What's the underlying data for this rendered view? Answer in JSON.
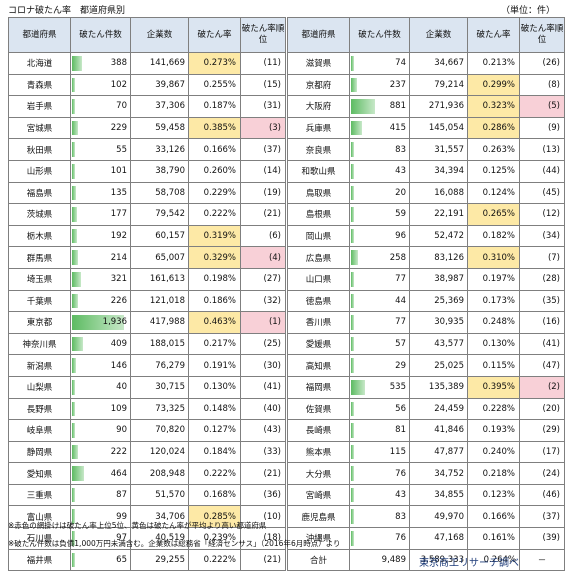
{
  "title": "コロナ破たん率　都道府県別",
  "unit": "（単位：件）",
  "headers": {
    "pref": "都道府県",
    "count": "破たん件数",
    "companies": "企業数",
    "rate": "破たん率",
    "rank": "破たん率順位"
  },
  "max_count": 1936,
  "colors": {
    "rate_highlight": "#fde9a6",
    "rank_highlight": "#f8d0d7",
    "header_bg": "#dbe5f1"
  },
  "left": [
    {
      "pref": "北海道",
      "count": "388",
      "n": 388,
      "companies": "141,669",
      "rate": "0.273%",
      "rank": "(11)",
      "rate_hl": true,
      "rank_hl": false
    },
    {
      "pref": "青森県",
      "count": "102",
      "n": 102,
      "companies": "39,867",
      "rate": "0.255%",
      "rank": "(15)",
      "rate_hl": false,
      "rank_hl": false
    },
    {
      "pref": "岩手県",
      "count": "70",
      "n": 70,
      "companies": "37,306",
      "rate": "0.187%",
      "rank": "(31)",
      "rate_hl": false,
      "rank_hl": false
    },
    {
      "pref": "宮城県",
      "count": "229",
      "n": 229,
      "companies": "59,458",
      "rate": "0.385%",
      "rank": "(3)",
      "rate_hl": true,
      "rank_hl": true
    },
    {
      "pref": "秋田県",
      "count": "55",
      "n": 55,
      "companies": "33,126",
      "rate": "0.166%",
      "rank": "(37)",
      "rate_hl": false,
      "rank_hl": false
    },
    {
      "pref": "山形県",
      "count": "101",
      "n": 101,
      "companies": "38,790",
      "rate": "0.260%",
      "rank": "(14)",
      "rate_hl": false,
      "rank_hl": false
    },
    {
      "pref": "福島県",
      "count": "135",
      "n": 135,
      "companies": "58,708",
      "rate": "0.229%",
      "rank": "(19)",
      "rate_hl": false,
      "rank_hl": false
    },
    {
      "pref": "茨城県",
      "count": "177",
      "n": 177,
      "companies": "79,542",
      "rate": "0.222%",
      "rank": "(21)",
      "rate_hl": false,
      "rank_hl": false
    },
    {
      "pref": "栃木県",
      "count": "192",
      "n": 192,
      "companies": "60,157",
      "rate": "0.319%",
      "rank": "(6)",
      "rate_hl": true,
      "rank_hl": false
    },
    {
      "pref": "群馬県",
      "count": "214",
      "n": 214,
      "companies": "65,007",
      "rate": "0.329%",
      "rank": "(4)",
      "rate_hl": true,
      "rank_hl": true
    },
    {
      "pref": "埼玉県",
      "count": "321",
      "n": 321,
      "companies": "161,613",
      "rate": "0.198%",
      "rank": "(27)",
      "rate_hl": false,
      "rank_hl": false
    },
    {
      "pref": "千葉県",
      "count": "226",
      "n": 226,
      "companies": "121,018",
      "rate": "0.186%",
      "rank": "(32)",
      "rate_hl": false,
      "rank_hl": false
    },
    {
      "pref": "東京都",
      "count": "1,936",
      "n": 1936,
      "companies": "417,988",
      "rate": "0.463%",
      "rank": "(1)",
      "rate_hl": true,
      "rank_hl": true
    },
    {
      "pref": "神奈川県",
      "count": "409",
      "n": 409,
      "companies": "188,015",
      "rate": "0.217%",
      "rank": "(25)",
      "rate_hl": false,
      "rank_hl": false
    },
    {
      "pref": "新潟県",
      "count": "146",
      "n": 146,
      "companies": "76,279",
      "rate": "0.191%",
      "rank": "(30)",
      "rate_hl": false,
      "rank_hl": false
    },
    {
      "pref": "山梨県",
      "count": "40",
      "n": 40,
      "companies": "30,715",
      "rate": "0.130%",
      "rank": "(41)",
      "rate_hl": false,
      "rank_hl": false
    },
    {
      "pref": "長野県",
      "count": "109",
      "n": 109,
      "companies": "73,325",
      "rate": "0.148%",
      "rank": "(40)",
      "rate_hl": false,
      "rank_hl": false
    },
    {
      "pref": "岐阜県",
      "count": "90",
      "n": 90,
      "companies": "70,820",
      "rate": "0.127%",
      "rank": "(43)",
      "rate_hl": false,
      "rank_hl": false
    },
    {
      "pref": "静岡県",
      "count": "222",
      "n": 222,
      "companies": "120,024",
      "rate": "0.184%",
      "rank": "(33)",
      "rate_hl": false,
      "rank_hl": false
    },
    {
      "pref": "愛知県",
      "count": "464",
      "n": 464,
      "companies": "208,948",
      "rate": "0.222%",
      "rank": "(21)",
      "rate_hl": false,
      "rank_hl": false
    },
    {
      "pref": "三重県",
      "count": "87",
      "n": 87,
      "companies": "51,570",
      "rate": "0.168%",
      "rank": "(36)",
      "rate_hl": false,
      "rank_hl": false
    },
    {
      "pref": "富山県",
      "count": "99",
      "n": 99,
      "companies": "34,706",
      "rate": "0.285%",
      "rank": "(10)",
      "rate_hl": true,
      "rank_hl": false
    },
    {
      "pref": "石川県",
      "count": "97",
      "n": 97,
      "companies": "40,519",
      "rate": "0.239%",
      "rank": "(18)",
      "rate_hl": false,
      "rank_hl": false
    },
    {
      "pref": "福井県",
      "count": "65",
      "n": 65,
      "companies": "29,255",
      "rate": "0.222%",
      "rank": "(21)",
      "rate_hl": false,
      "rank_hl": false
    }
  ],
  "right": [
    {
      "pref": "滋賀県",
      "count": "74",
      "n": 74,
      "companies": "34,667",
      "rate": "0.213%",
      "rank": "(26)",
      "rate_hl": false,
      "rank_hl": false
    },
    {
      "pref": "京都府",
      "count": "237",
      "n": 237,
      "companies": "79,214",
      "rate": "0.299%",
      "rank": "(8)",
      "rate_hl": true,
      "rank_hl": false
    },
    {
      "pref": "大阪府",
      "count": "881",
      "n": 881,
      "companies": "271,936",
      "rate": "0.323%",
      "rank": "(5)",
      "rate_hl": true,
      "rank_hl": true
    },
    {
      "pref": "兵庫県",
      "count": "415",
      "n": 415,
      "companies": "145,054",
      "rate": "0.286%",
      "rank": "(9)",
      "rate_hl": true,
      "rank_hl": false
    },
    {
      "pref": "奈良県",
      "count": "83",
      "n": 83,
      "companies": "31,557",
      "rate": "0.263%",
      "rank": "(13)",
      "rate_hl": false,
      "rank_hl": false
    },
    {
      "pref": "和歌山県",
      "count": "43",
      "n": 43,
      "companies": "34,394",
      "rate": "0.125%",
      "rank": "(44)",
      "rate_hl": false,
      "rank_hl": false
    },
    {
      "pref": "鳥取県",
      "count": "20",
      "n": 20,
      "companies": "16,088",
      "rate": "0.124%",
      "rank": "(45)",
      "rate_hl": false,
      "rank_hl": false
    },
    {
      "pref": "島根県",
      "count": "59",
      "n": 59,
      "companies": "22,191",
      "rate": "0.265%",
      "rank": "(12)",
      "rate_hl": true,
      "rank_hl": false
    },
    {
      "pref": "岡山県",
      "count": "96",
      "n": 96,
      "companies": "52,472",
      "rate": "0.182%",
      "rank": "(34)",
      "rate_hl": false,
      "rank_hl": false
    },
    {
      "pref": "広島県",
      "count": "258",
      "n": 258,
      "companies": "83,126",
      "rate": "0.310%",
      "rank": "(7)",
      "rate_hl": true,
      "rank_hl": false
    },
    {
      "pref": "山口県",
      "count": "77",
      "n": 77,
      "companies": "38,987",
      "rate": "0.197%",
      "rank": "(28)",
      "rate_hl": false,
      "rank_hl": false
    },
    {
      "pref": "徳島県",
      "count": "44",
      "n": 44,
      "companies": "25,369",
      "rate": "0.173%",
      "rank": "(35)",
      "rate_hl": false,
      "rank_hl": false
    },
    {
      "pref": "香川県",
      "count": "77",
      "n": 77,
      "companies": "30,935",
      "rate": "0.248%",
      "rank": "(16)",
      "rate_hl": false,
      "rank_hl": false
    },
    {
      "pref": "愛媛県",
      "count": "57",
      "n": 57,
      "companies": "43,577",
      "rate": "0.130%",
      "rank": "(41)",
      "rate_hl": false,
      "rank_hl": false
    },
    {
      "pref": "高知県",
      "count": "29",
      "n": 29,
      "companies": "25,025",
      "rate": "0.115%",
      "rank": "(47)",
      "rate_hl": false,
      "rank_hl": false
    },
    {
      "pref": "福岡県",
      "count": "535",
      "n": 535,
      "companies": "135,389",
      "rate": "0.395%",
      "rank": "(2)",
      "rate_hl": true,
      "rank_hl": true
    },
    {
      "pref": "佐賀県",
      "count": "56",
      "n": 56,
      "companies": "24,459",
      "rate": "0.228%",
      "rank": "(20)",
      "rate_hl": false,
      "rank_hl": false
    },
    {
      "pref": "長崎県",
      "count": "81",
      "n": 81,
      "companies": "41,846",
      "rate": "0.193%",
      "rank": "(29)",
      "rate_hl": false,
      "rank_hl": false
    },
    {
      "pref": "熊本県",
      "count": "115",
      "n": 115,
      "companies": "47,877",
      "rate": "0.240%",
      "rank": "(17)",
      "rate_hl": false,
      "rank_hl": false
    },
    {
      "pref": "大分県",
      "count": "76",
      "n": 76,
      "companies": "34,752",
      "rate": "0.218%",
      "rank": "(24)",
      "rate_hl": false,
      "rank_hl": false
    },
    {
      "pref": "宮崎県",
      "count": "43",
      "n": 43,
      "companies": "34,855",
      "rate": "0.123%",
      "rank": "(46)",
      "rate_hl": false,
      "rank_hl": false
    },
    {
      "pref": "鹿児島県",
      "count": "83",
      "n": 83,
      "companies": "49,970",
      "rate": "0.166%",
      "rank": "(37)",
      "rate_hl": false,
      "rank_hl": false
    },
    {
      "pref": "沖縄県",
      "count": "76",
      "n": 76,
      "companies": "47,168",
      "rate": "0.161%",
      "rank": "(39)",
      "rate_hl": false,
      "rank_hl": false
    }
  ],
  "total": {
    "label": "合計",
    "count": "9,489",
    "companies": "3,589,333",
    "rate": "0.264%",
    "rank": "－"
  },
  "notes": [
    "※赤色の網掛けは破たん率上位5位、黄色は破たん率が平均より高い都道府県",
    "※破たん件数は負債1,000万円未満含む。企業数は総務省「経済センサス」（2016年6月時点）より"
  ],
  "source": "東京商工リサーチ調べ"
}
